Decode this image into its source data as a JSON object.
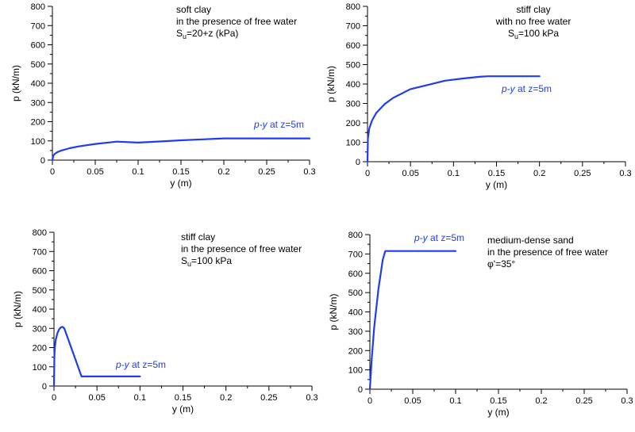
{
  "figure": {
    "colors": {
      "series": "#1f3cf0",
      "axis": "#000000"
    }
  },
  "chart_data": [
    {
      "type": "line",
      "xlabel": "y (m)",
      "ylabel": "p (kN/m)",
      "xlim": [
        0,
        0.3
      ],
      "ylim": [
        0,
        800
      ],
      "xticks": [
        "0",
        "0.05",
        "0.1",
        "0.15",
        "0.2",
        "0.25",
        "0.3"
      ],
      "yticks": [
        "0",
        "100",
        "200",
        "300",
        "400",
        "500",
        "600",
        "700",
        "800"
      ],
      "annotation_lines": [
        "soft clay",
        "in the presence of free water",
        "S_u=20+z (kPa)"
      ],
      "series": [
        {
          "name": "p-y at z=5m",
          "x": [
            0,
            0.001,
            0.003,
            0.006,
            0.01,
            0.02,
            0.03,
            0.05,
            0.075,
            0.1,
            0.125,
            0.15,
            0.175,
            0.2,
            0.25,
            0.3
          ],
          "y": [
            0,
            23,
            33,
            42,
            49,
            62,
            71,
            84,
            96,
            91,
            97,
            103,
            108,
            113,
            113,
            113
          ]
        }
      ]
    },
    {
      "type": "line",
      "xlabel": "y (m)",
      "ylabel": "p (kN/m)",
      "xlim": [
        0,
        0.3
      ],
      "ylim": [
        0,
        800
      ],
      "xticks": [
        "0",
        "0.05",
        "0.1",
        "0.15",
        "0.2",
        "0.25",
        "0.3"
      ],
      "yticks": [
        "0",
        "100",
        "200",
        "300",
        "400",
        "500",
        "600",
        "700",
        "800"
      ],
      "annotation_lines": [
        "stiff clay",
        "with no free water",
        "S_u=100 kPa"
      ],
      "series": [
        {
          "name": "p-y at z=5m",
          "x": [
            0,
            0.0005,
            0.002,
            0.005,
            0.01,
            0.02,
            0.03,
            0.05,
            0.07,
            0.09,
            0.11,
            0.13,
            0.14,
            0.2
          ],
          "y": [
            0,
            120,
            170,
            210,
            250,
            297,
            329,
            374,
            395,
            417,
            428,
            437,
            440,
            440
          ]
        }
      ]
    },
    {
      "type": "line",
      "xlabel": "y (m)",
      "ylabel": "p (kN/m)",
      "xlim": [
        0,
        0.3
      ],
      "ylim": [
        0,
        800
      ],
      "xticks": [
        "0",
        "0.05",
        "0.1",
        "0.15",
        "0.2",
        "0.25",
        "0.3"
      ],
      "yticks": [
        "0",
        "100",
        "200",
        "300",
        "400",
        "500",
        "600",
        "700",
        "800"
      ],
      "annotation_lines": [
        "stiff clay",
        "in the presence of free water",
        "S_u=100 kPa"
      ],
      "series": [
        {
          "name": "p-y at z=5m",
          "x": [
            0,
            0.0005,
            0.001,
            0.002,
            0.004,
            0.006,
            0.008,
            0.01,
            0.012,
            0.032,
            0.1
          ],
          "y": [
            0,
            150,
            200,
            240,
            275,
            295,
            305,
            308,
            300,
            50,
            50
          ]
        }
      ]
    },
    {
      "type": "line",
      "xlabel": "y (m)",
      "ylabel": "p (kN/m)",
      "xlim": [
        0,
        0.3
      ],
      "ylim": [
        0,
        800
      ],
      "xticks": [
        "0",
        "0.05",
        "0.1",
        "0.15",
        "0.2",
        "0.25",
        "0.3"
      ],
      "yticks": [
        "0",
        "100",
        "200",
        "300",
        "400",
        "500",
        "600",
        "700",
        "800"
      ],
      "annotation_lines": [
        "medium-dense sand",
        "in the presence of free water",
        "φ'=35°"
      ],
      "series": [
        {
          "name": "p-y at z=5m",
          "x": [
            0,
            0.002,
            0.005,
            0.01,
            0.015,
            0.018,
            0.1
          ],
          "y": [
            0,
            150,
            320,
            520,
            670,
            715,
            715
          ]
        }
      ]
    }
  ]
}
